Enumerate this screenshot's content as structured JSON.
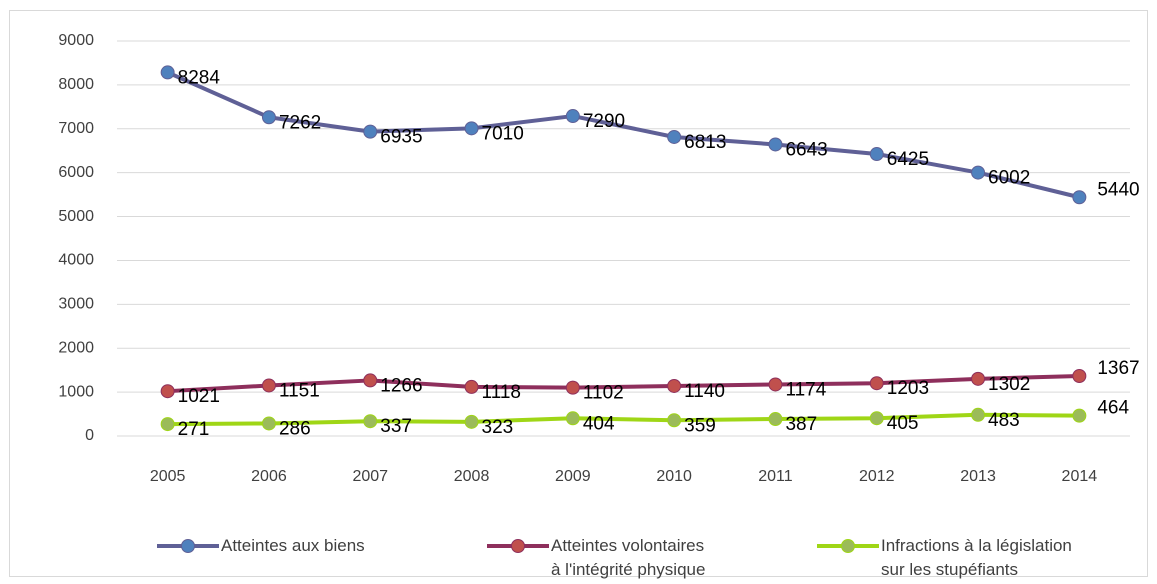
{
  "chart_data": {
    "type": "line",
    "categories": [
      "2005",
      "2006",
      "2007",
      "2008",
      "2009",
      "2010",
      "2011",
      "2012",
      "2013",
      "2014"
    ],
    "series": [
      {
        "name": "Atteintes aux biens",
        "color": "#5f6096",
        "marker_color": "#4f81bd",
        "values": [
          8284,
          7262,
          6935,
          7010,
          7290,
          6813,
          6643,
          6425,
          6002,
          5440
        ]
      },
      {
        "name": "Atteintes volontaires\nà l'intégrité physique",
        "color": "#8e2f5c",
        "marker_color": "#c0504d",
        "values": [
          1021,
          1151,
          1266,
          1118,
          1102,
          1140,
          1174,
          1203,
          1302,
          1367
        ]
      },
      {
        "name": "Infractions à la législation\nsur les stupéfiants",
        "color": "#9fd616",
        "marker_color": "#9bbb59",
        "values": [
          271,
          286,
          337,
          323,
          404,
          359,
          387,
          405,
          483,
          464
        ]
      }
    ],
    "ylim": [
      0,
      9000
    ],
    "yticks": [
      0,
      1000,
      2000,
      3000,
      4000,
      5000,
      6000,
      7000,
      8000,
      9000
    ],
    "grid": true,
    "legend": "bottom"
  }
}
